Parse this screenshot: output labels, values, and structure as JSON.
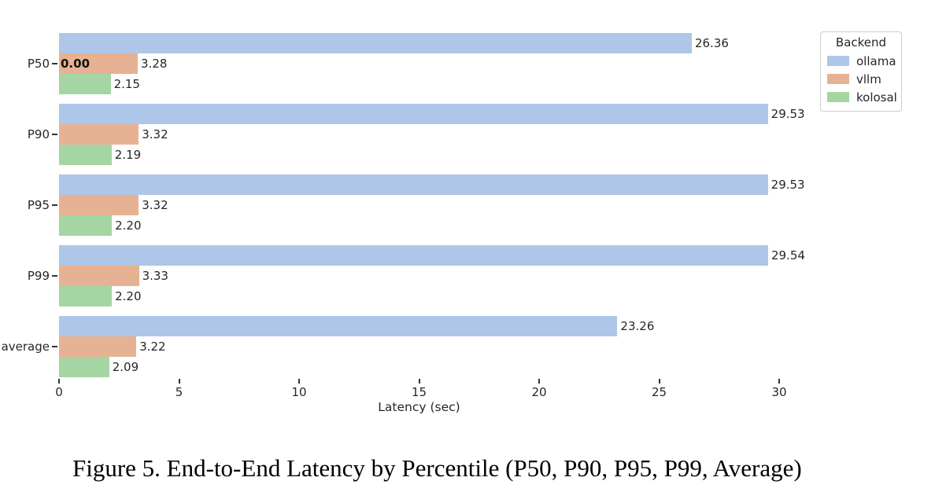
{
  "caption": "Figure 5. End-to-End Latency by Percentile (P50, P90, P95, P99, Average)",
  "chart_data": {
    "type": "bar",
    "orientation": "horizontal",
    "title": "",
    "xlabel": "Latency (sec)",
    "ylabel": "",
    "categories": [
      "P50",
      "P90",
      "P95",
      "P99",
      "average"
    ],
    "series": [
      {
        "name": "ollama",
        "color": "#aec6e8",
        "values": [
          26.36,
          29.53,
          29.53,
          29.54,
          23.26
        ],
        "labels": [
          "26.36",
          "29.53",
          "29.53",
          "29.54",
          "23.26"
        ]
      },
      {
        "name": "vllm",
        "color": "#e7b293",
        "values": [
          3.28,
          3.32,
          3.32,
          3.33,
          3.22
        ],
        "labels": [
          "3.28",
          "3.32",
          "3.32",
          "3.33",
          "3.22"
        ]
      },
      {
        "name": "kolosal",
        "color": "#a6d5a4",
        "values": [
          2.15,
          2.19,
          2.2,
          2.2,
          2.09
        ],
        "labels": [
          "2.15",
          "2.19",
          "2.20",
          "2.20",
          "2.09"
        ]
      }
    ],
    "annotations": [
      {
        "category": "P50",
        "series": "vllm",
        "text": "0.00",
        "position": "bar-start",
        "bold": true
      }
    ],
    "xticks": [
      0,
      5,
      10,
      15,
      20,
      25,
      30
    ],
    "xtick_labels": [
      "0",
      "5",
      "10",
      "15",
      "20",
      "25",
      "30"
    ],
    "xlim": [
      0,
      32
    ],
    "grid": false,
    "spines": false,
    "legend": {
      "title": "Backend",
      "position": "upper-right"
    },
    "text_color": "#262626"
  }
}
